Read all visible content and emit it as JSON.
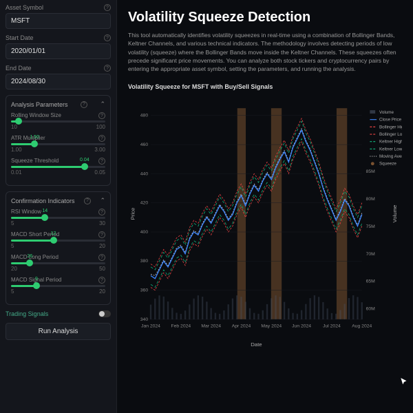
{
  "sidebar": {
    "asset": {
      "label": "Asset Symbol",
      "value": "MSFT"
    },
    "start": {
      "label": "Start Date",
      "value": "2020/01/01"
    },
    "end": {
      "label": "End Date",
      "value": "2024/08/30"
    },
    "analysis": {
      "title": "Analysis Parameters",
      "sliders": [
        {
          "label": "Rolling Window Size",
          "min": "10",
          "max": "100",
          "val": "",
          "pct": 8
        },
        {
          "label": "ATR Multiplier",
          "min": "1.00",
          "max": "3.00",
          "val": "1.50",
          "pct": 25
        },
        {
          "label": "Squeeze Threshold",
          "min": "0.01",
          "max": "0.05",
          "val": "0.04",
          "pct": 78
        }
      ]
    },
    "confirm": {
      "title": "Confirmation Indicators",
      "sliders": [
        {
          "label": "RSI Window",
          "min": "5",
          "max": "30",
          "val": "14",
          "pct": 36
        },
        {
          "label": "MACD Short Period",
          "min": "5",
          "max": "20",
          "val": "12",
          "pct": 45
        },
        {
          "label": "MACD Long Period",
          "min": "20",
          "max": "50",
          "val": "26",
          "pct": 20
        },
        {
          "label": "MACD Signal Period",
          "min": "5",
          "max": "20",
          "val": "9",
          "pct": 27
        }
      ]
    },
    "trading_toggle": "Trading Signals",
    "run": "Run Analysis"
  },
  "main": {
    "title": "Volatility Squeeze Detection",
    "desc": "This tool automatically identifies volatility squeezes in real-time using a combination of Bollinger Bands, Keltner Channels, and various technical indicators. The methodology involves detecting periods of low volatility (squeeze) where the Bollinger Bands move inside the Keltner Channels. These squeezes often precede significant price movements. You can analyze both stock tickers and cryptocurrency pairs by entering the appropriate asset symbol, setting the parameters, and running the analysis.",
    "chart_title": "Volatility Squeeze for MSFT with Buy/Sell Signals"
  },
  "chart": {
    "y_ticks": [
      "340",
      "360",
      "380",
      "400",
      "420",
      "440",
      "460",
      "480"
    ],
    "y_label": "Price",
    "y2_ticks": [
      "60M",
      "65M",
      "70M",
      "75M",
      "80M",
      "85M"
    ],
    "y2_label": "Volume",
    "x_ticks": [
      "Jan 2024",
      "Feb 2024",
      "Mar 2024",
      "Apr 2024",
      "May 2024",
      "Jun 2024",
      "Jul 2024",
      "Aug 2024"
    ],
    "x_label": "Date",
    "colors": {
      "close": "#3b82f6",
      "boll_high": "#ef4444",
      "boll_low": "#ef4444",
      "kelt_high": "#10b981",
      "kelt_low": "#10b981",
      "ma": "#d4d4d4",
      "volume": "#4a5568",
      "squeeze_band": "#7a5230",
      "squeeze_dot": "#7a5230",
      "grid": "#1a1c22",
      "bg": "#0a0c10"
    },
    "legend": [
      "Volume",
      "Close Price",
      "Bollinger High",
      "Bollinger Low",
      "Keltner High",
      "Keltner Low",
      "Moving Average",
      "Squeeze"
    ],
    "squeeze_bands": [
      [
        0.41,
        0.45
      ],
      [
        0.57,
        0.62
      ],
      [
        0.88,
        0.93
      ]
    ],
    "close": [
      370,
      368,
      374,
      380,
      376,
      382,
      388,
      390,
      385,
      395,
      400,
      398,
      405,
      410,
      406,
      412,
      418,
      414,
      408,
      412,
      420,
      425,
      418,
      426,
      432,
      428,
      435,
      440,
      436,
      444,
      450,
      455,
      448,
      458,
      464,
      470,
      462,
      456,
      448,
      440,
      430,
      422,
      415,
      408,
      414,
      422,
      418,
      410,
      404,
      412
    ],
    "boll_high": [
      378,
      376,
      382,
      388,
      384,
      390,
      396,
      398,
      393,
      403,
      408,
      406,
      413,
      418,
      414,
      420,
      426,
      422,
      416,
      420,
      428,
      433,
      426,
      434,
      440,
      436,
      443,
      448,
      444,
      452,
      458,
      463,
      456,
      466,
      472,
      478,
      470,
      464,
      456,
      448,
      438,
      430,
      423,
      416,
      422,
      430,
      426,
      418,
      412,
      420
    ],
    "boll_low": [
      362,
      360,
      366,
      372,
      368,
      374,
      380,
      382,
      377,
      387,
      392,
      390,
      397,
      402,
      398,
      404,
      410,
      406,
      400,
      404,
      412,
      417,
      410,
      418,
      424,
      420,
      427,
      432,
      428,
      436,
      442,
      447,
      440,
      450,
      456,
      462,
      454,
      448,
      440,
      432,
      422,
      414,
      407,
      400,
      406,
      414,
      410,
      402,
      396,
      404
    ],
    "kelt_high": [
      376,
      374,
      380,
      386,
      382,
      388,
      394,
      396,
      391,
      401,
      406,
      404,
      411,
      416,
      412,
      418,
      424,
      420,
      414,
      418,
      426,
      431,
      424,
      432,
      438,
      434,
      441,
      446,
      442,
      450,
      456,
      461,
      454,
      464,
      470,
      476,
      468,
      462,
      454,
      446,
      436,
      428,
      421,
      414,
      420,
      428,
      424,
      416,
      410,
      418
    ],
    "kelt_low": [
      364,
      362,
      368,
      374,
      370,
      376,
      382,
      384,
      379,
      389,
      394,
      392,
      399,
      404,
      400,
      406,
      412,
      408,
      402,
      406,
      414,
      419,
      412,
      420,
      426,
      422,
      429,
      434,
      430,
      438,
      444,
      449,
      442,
      452,
      458,
      464,
      456,
      450,
      442,
      434,
      424,
      416,
      409,
      402,
      408,
      416,
      412,
      404,
      398,
      406
    ],
    "ma": [
      371,
      370,
      375,
      381,
      377,
      383,
      389,
      391,
      386,
      396,
      401,
      399,
      406,
      411,
      407,
      413,
      419,
      415,
      409,
      413,
      421,
      426,
      419,
      427,
      433,
      429,
      436,
      441,
      437,
      445,
      451,
      456,
      449,
      459,
      465,
      471,
      463,
      457,
      449,
      441,
      431,
      423,
      416,
      409,
      415,
      423,
      419,
      411,
      405,
      413
    ]
  }
}
